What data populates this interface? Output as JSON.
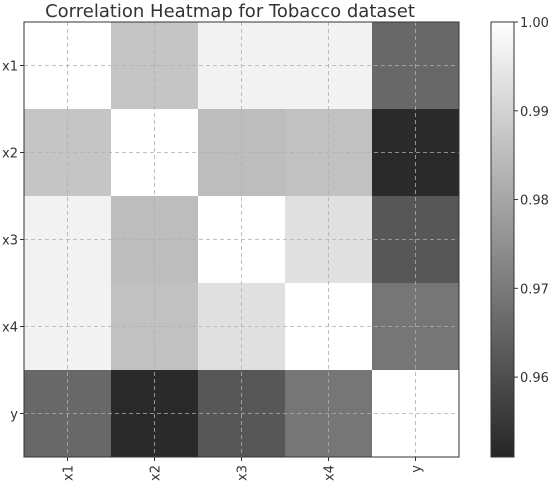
{
  "chart_data": {
    "type": "heatmap",
    "title": "Correlation Heatmap for Tobacco dataset",
    "x_categories": [
      "x1",
      "x2",
      "x3",
      "x4",
      "y"
    ],
    "y_categories": [
      "x1",
      "x2",
      "x3",
      "x4",
      "y"
    ],
    "values": [
      [
        1.0,
        0.987,
        0.997,
        0.997,
        0.966
      ],
      [
        0.987,
        1.0,
        0.985,
        0.986,
        0.952
      ],
      [
        0.997,
        0.985,
        1.0,
        0.993,
        0.962
      ],
      [
        0.997,
        0.986,
        0.993,
        1.0,
        0.969
      ],
      [
        0.966,
        0.952,
        0.962,
        0.969,
        1.0
      ]
    ],
    "colorbar": {
      "min": 0.951,
      "max": 1.0,
      "ticks": [
        0.96,
        0.97,
        0.98,
        0.99,
        1.0
      ],
      "tick_labels": [
        "0.96",
        "0.97",
        "0.98",
        "0.99",
        "1.00"
      ],
      "colormap": "grayscale",
      "low_color": "#262626",
      "high_color": "#ffffff"
    },
    "grid": true
  }
}
